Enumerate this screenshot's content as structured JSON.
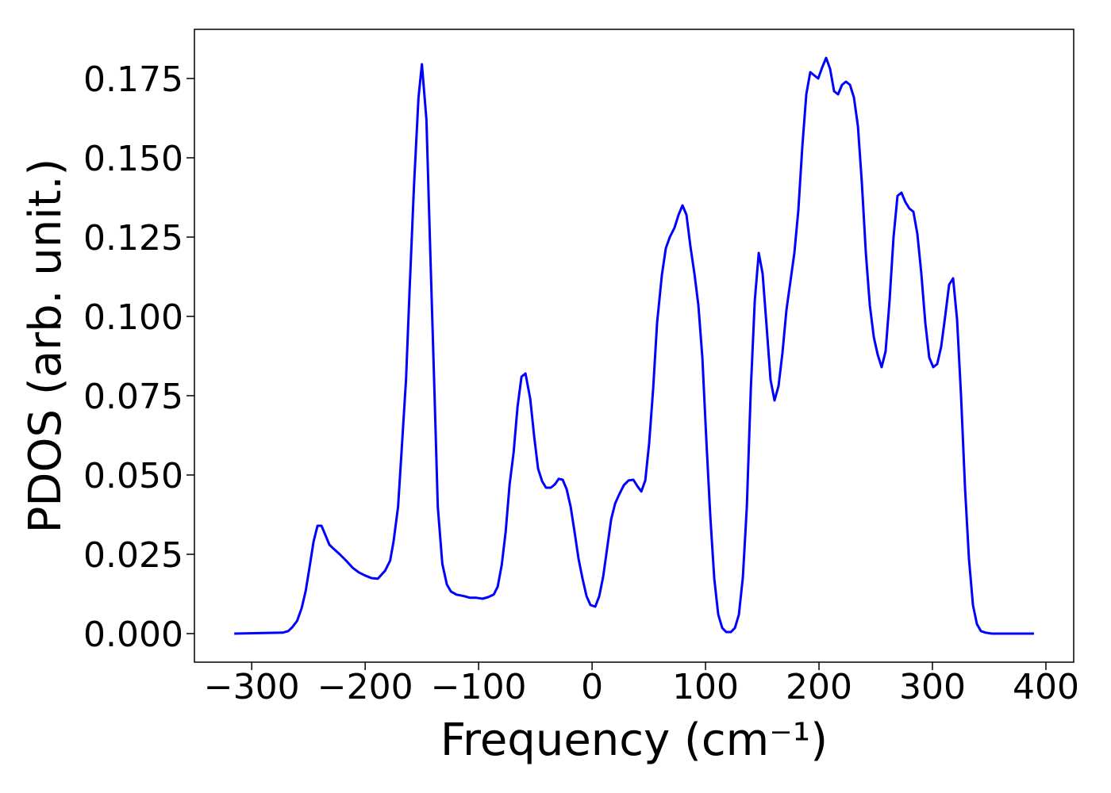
{
  "chart_data": {
    "type": "line",
    "xlabel": "Frequency (cm⁻¹)",
    "ylabel": "PDOS (arb. unit.)",
    "xlim": [
      -350.5,
      424.5
    ],
    "ylim": [
      -0.009,
      0.1905
    ],
    "xticks": [
      {
        "value": -300,
        "label": "−300"
      },
      {
        "value": -200,
        "label": "−200"
      },
      {
        "value": -100,
        "label": "−100"
      },
      0,
      100,
      200,
      300,
      400
    ],
    "yticks": [
      {
        "value": 0,
        "label": "0.000"
      },
      {
        "value": 0.025,
        "label": "0.025"
      },
      {
        "value": 0.05,
        "label": "0.050"
      },
      {
        "value": 0.075,
        "label": "0.075"
      },
      {
        "value": 0.1,
        "label": "0.100"
      },
      {
        "value": 0.125,
        "label": "0.125"
      },
      {
        "value": 0.15,
        "label": "0.150"
      },
      {
        "value": 0.175,
        "label": "0.175"
      }
    ],
    "x": [
      -315.4,
      -272.7,
      -267.8,
      -264.3,
      -260,
      -256,
      -252.4,
      -249,
      -245.5,
      -242,
      -238.5,
      -235,
      -231.5,
      -228,
      -222.4,
      -216.8,
      -211.2,
      -205.6,
      -200,
      -194.4,
      -188.8,
      -182.5,
      -178,
      -175,
      -171,
      -168,
      -164,
      -161,
      -157,
      -153,
      -150,
      -146,
      -143,
      -139,
      -136,
      -132,
      -128,
      -124.5,
      -119.6,
      -112.6,
      -107.7,
      -102,
      -96.5,
      -91.6,
      -86.7,
      -83.2,
      -79.7,
      -76.2,
      -72.7,
      -69.2,
      -65.7,
      -62.2,
      -58.7,
      -54.5,
      -51,
      -47.6,
      -44,
      -40.6,
      -36.4,
      -32.9,
      -29.4,
      -25.9,
      -22.4,
      -18.9,
      -15.4,
      -11.9,
      -8.4,
      -4.9,
      -1.4,
      2.8,
      6.3,
      9.8,
      13.3,
      16.8,
      20.3,
      23.8,
      28,
      32.2,
      36.4,
      39.9,
      43.4,
      46.9,
      50.3,
      53.8,
      57.3,
      61.5,
      65,
      68.5,
      72.7,
      76.2,
      79.7,
      83.2,
      86.7,
      90.2,
      93.7,
      97.2,
      100.7,
      104.2,
      107.7,
      111.2,
      114.7,
      118.2,
      122.4,
      125.9,
      129.4,
      132.9,
      136.4,
      139.9,
      143.4,
      146.9,
      150.3,
      153.8,
      157.3,
      160.8,
      164.3,
      167.8,
      171.3,
      174.8,
      178.3,
      181.8,
      185.3,
      188.8,
      192.3,
      195.8,
      199.3,
      202.8,
      206.3,
      209.8,
      213.3,
      216.8,
      220.3,
      223.8,
      227.3,
      230.8,
      234.3,
      237.8,
      241.3,
      244.8,
      248.3,
      251.7,
      255.2,
      258.7,
      262.2,
      265.7,
      269.2,
      272.7,
      276.2,
      279.7,
      283.2,
      286.7,
      290.2,
      293.7,
      297.2,
      300.7,
      304.2,
      307.7,
      311.2,
      314.7,
      318.2,
      321.7,
      325.2,
      328.7,
      332.2,
      335.7,
      339.2,
      342.7,
      346.9,
      352.4,
      389.5
    ],
    "series": [
      {
        "name": "PDOS",
        "color": "#0000ff",
        "values": [
          0,
          0.0003,
          0.0008,
          0.002,
          0.004,
          0.008,
          0.0135,
          0.021,
          0.029,
          0.034,
          0.034,
          0.031,
          0.028,
          0.0268,
          0.025,
          0.023,
          0.0208,
          0.0193,
          0.0183,
          0.0175,
          0.0173,
          0.0198,
          0.023,
          0.029,
          0.04,
          0.057,
          0.08,
          0.107,
          0.141,
          0.169,
          0.1795,
          0.162,
          0.125,
          0.077,
          0.04,
          0.022,
          0.0155,
          0.0133,
          0.0123,
          0.0118,
          0.0113,
          0.0113,
          0.011,
          0.0115,
          0.0123,
          0.0148,
          0.0215,
          0.032,
          0.047,
          0.057,
          0.0715,
          0.081,
          0.082,
          0.074,
          0.062,
          0.052,
          0.048,
          0.046,
          0.046,
          0.047,
          0.0488,
          0.0485,
          0.0455,
          0.04,
          0.032,
          0.0235,
          0.0173,
          0.0118,
          0.009,
          0.0085,
          0.0118,
          0.018,
          0.027,
          0.036,
          0.041,
          0.0438,
          0.0468,
          0.0483,
          0.0485,
          0.0465,
          0.0448,
          0.0483,
          0.06,
          0.077,
          0.098,
          0.113,
          0.1215,
          0.125,
          0.128,
          0.132,
          0.135,
          0.132,
          0.122,
          0.1135,
          0.1035,
          0.087,
          0.061,
          0.037,
          0.0173,
          0.006,
          0.0018,
          0.0005,
          0.0005,
          0.0018,
          0.006,
          0.0178,
          0.04,
          0.077,
          0.105,
          0.12,
          0.1135,
          0.097,
          0.08,
          0.0735,
          0.078,
          0.0885,
          0.102,
          0.111,
          0.12,
          0.1335,
          0.1535,
          0.17,
          0.177,
          0.176,
          0.175,
          0.1785,
          0.1815,
          0.178,
          0.171,
          0.17,
          0.173,
          0.174,
          0.173,
          0.169,
          0.16,
          0.142,
          0.12,
          0.1035,
          0.0935,
          0.088,
          0.084,
          0.089,
          0.105,
          0.125,
          0.138,
          0.139,
          0.136,
          0.134,
          0.133,
          0.126,
          0.1135,
          0.098,
          0.087,
          0.084,
          0.085,
          0.0905,
          0.1,
          0.11,
          0.112,
          0.099,
          0.075,
          0.046,
          0.0235,
          0.009,
          0.003,
          0.0008,
          0.0003,
          0,
          0
        ]
      }
    ]
  }
}
